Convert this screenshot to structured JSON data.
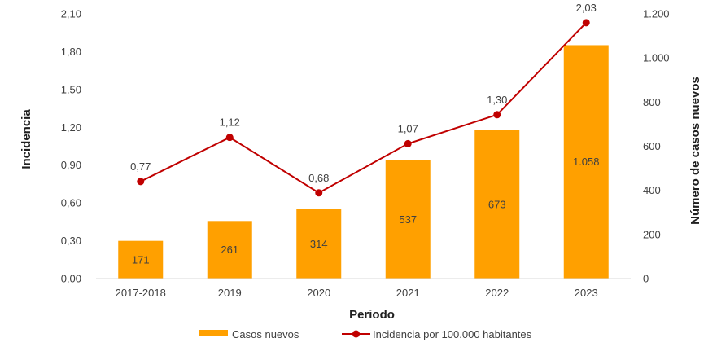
{
  "chart_data": {
    "type": "bar",
    "categories": [
      "2017-2018",
      "2019",
      "2020",
      "2021",
      "2022",
      "2023"
    ],
    "series": [
      {
        "name": "Casos nuevos",
        "type": "bar",
        "axis": "right",
        "color": "#FFA000",
        "values": [
          171,
          261,
          314,
          537,
          673,
          1058
        ],
        "labels": [
          "171",
          "261",
          "314",
          "537",
          "673",
          "1.058"
        ]
      },
      {
        "name": "Incidencia por 100.000 habitantes",
        "type": "line",
        "axis": "left",
        "color": "#C00000",
        "values": [
          0.77,
          1.12,
          0.68,
          1.07,
          1.3,
          2.03
        ],
        "labels": [
          "0,77",
          "1,12",
          "0,68",
          "1,07",
          "1,30",
          "2,03"
        ]
      }
    ],
    "xlabel": "Periodo",
    "ylabel": "Incidencia",
    "y2label": "Número de casos nuevos",
    "ylim": [
      0,
      2.1
    ],
    "y2lim": [
      0,
      1200
    ],
    "yticks": {
      "values": [
        0,
        0.3,
        0.6,
        0.9,
        1.2,
        1.5,
        1.8,
        2.1
      ],
      "labels": [
        "0,00",
        "0,30",
        "0,60",
        "0,90",
        "1,20",
        "1,50",
        "1,80",
        "2,10"
      ]
    },
    "y2ticks": {
      "values": [
        0,
        200,
        400,
        600,
        800,
        1000,
        1200
      ],
      "labels": [
        "0",
        "200",
        "400",
        "600",
        "800",
        "1.000",
        "1.200"
      ]
    },
    "grid": false,
    "legend": "bottom-center"
  }
}
